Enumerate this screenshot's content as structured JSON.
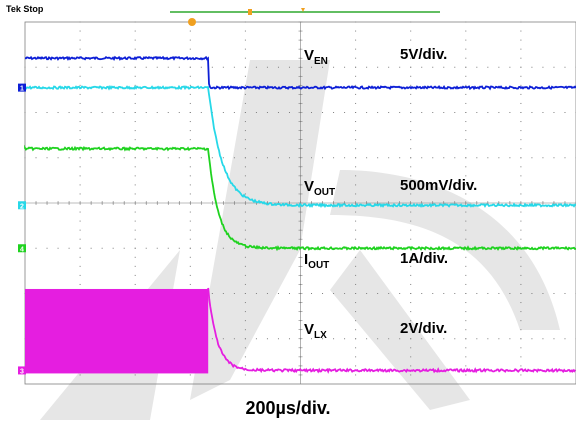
{
  "status": "Tek Stop",
  "timebase": "200µs/div.",
  "colors": {
    "ven": "#0d1fd6",
    "vout": "#27d8e8",
    "iout": "#1fd21f",
    "vlx": "#e51ee0",
    "grid": "#7f7f7f",
    "trigger": "#f0a020",
    "watermark": "#d9d9d9"
  },
  "chart_data": {
    "type": "line",
    "title": "",
    "grid": true,
    "x_divisions": 10,
    "y_divisions": 8,
    "x_unit": "µs",
    "x_per_div": 200,
    "event_time_us": 665,
    "series": [
      {
        "id": "ven",
        "channel": "1",
        "name": "V",
        "sub": "EN",
        "scale": "5V/div.",
        "color": "#0d1fd6",
        "ground_div": 1.45,
        "level_before_div": 0.65,
        "level_after_div": 0.0,
        "shape": "step-down"
      },
      {
        "id": "vout",
        "channel": "2",
        "name": "V",
        "sub": "OUT",
        "scale": "500mV/div.",
        "color": "#27d8e8",
        "ground_div": 4.05,
        "level_before_div": 2.6,
        "level_after_div": 0.0,
        "shape": "exp-decay-fast"
      },
      {
        "id": "iout",
        "channel": "4",
        "name": "I",
        "sub": "OUT",
        "scale": "1A/div.",
        "color": "#1fd21f",
        "ground_div": 5.0,
        "level_before_div": 2.2,
        "level_after_div": 0.0,
        "shape": "exp-decay-faster"
      },
      {
        "id": "vlx",
        "channel": "3",
        "name": "V",
        "sub": "LX",
        "scale": "2V/div.",
        "color": "#e51ee0",
        "ground_div": 7.7,
        "level_before_div": 1.8,
        "level_after_div": 0.0,
        "shape": "switching-then-decay"
      }
    ]
  }
}
